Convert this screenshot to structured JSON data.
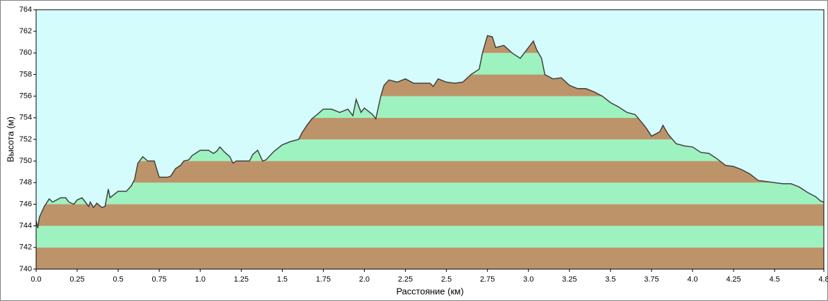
{
  "chart_data": {
    "type": "area",
    "x_label": "Расстояние  (км)",
    "y_label": "Высота (м)",
    "background": "#d4fcfc",
    "line_color": "#404040",
    "band_colors": [
      "#bd9469",
      "#9ef2bf"
    ],
    "xlim": [
      0,
      4.8
    ],
    "ylim": [
      740,
      764
    ],
    "xticks": [
      {
        "value": 0,
        "label": "0.0"
      },
      0.25,
      0.5,
      0.75,
      {
        "value": 1,
        "label": "1.0"
      },
      1.25,
      1.5,
      1.75,
      {
        "value": 2,
        "label": "2.0"
      },
      2.25,
      2.5,
      2.75,
      {
        "value": 3,
        "label": "3.0"
      },
      3.25,
      3.5,
      3.75,
      {
        "value": 4,
        "label": "4.0"
      },
      4.25,
      4.5,
      4.8
    ],
    "yticks": [
      740,
      742,
      744,
      746,
      748,
      750,
      752,
      754,
      756,
      758,
      760,
      762,
      764
    ],
    "x": [
      0,
      0.01,
      0.02,
      0.05,
      0.08,
      0.1,
      0.15,
      0.18,
      0.2,
      0.23,
      0.25,
      0.28,
      0.3,
      0.32,
      0.33,
      0.35,
      0.37,
      0.4,
      0.42,
      0.44,
      0.45,
      0.5,
      0.55,
      0.58,
      0.6,
      0.62,
      0.65,
      0.68,
      0.72,
      0.75,
      0.8,
      0.82,
      0.85,
      0.88,
      0.9,
      0.93,
      0.95,
      1.0,
      1.05,
      1.08,
      1.1,
      1.12,
      1.15,
      1.18,
      1.2,
      1.22,
      1.25,
      1.3,
      1.32,
      1.35,
      1.38,
      1.4,
      1.45,
      1.5,
      1.55,
      1.6,
      1.62,
      1.65,
      1.68,
      1.72,
      1.75,
      1.8,
      1.85,
      1.9,
      1.93,
      1.95,
      1.98,
      2.0,
      2.05,
      2.07,
      2.1,
      2.12,
      2.15,
      2.2,
      2.25,
      2.3,
      2.35,
      2.4,
      2.42,
      2.45,
      2.5,
      2.55,
      2.6,
      2.65,
      2.7,
      2.72,
      2.75,
      2.78,
      2.8,
      2.85,
      2.9,
      2.95,
      3.0,
      3.03,
      3.05,
      3.08,
      3.1,
      3.15,
      3.2,
      3.25,
      3.3,
      3.35,
      3.4,
      3.45,
      3.5,
      3.55,
      3.6,
      3.65,
      3.7,
      3.72,
      3.75,
      3.8,
      3.82,
      3.85,
      3.9,
      3.95,
      4.0,
      4.05,
      4.1,
      4.15,
      4.2,
      4.25,
      4.3,
      4.35,
      4.4,
      4.45,
      4.5,
      4.55,
      4.6,
      4.65,
      4.7,
      4.75,
      4.78,
      4.8
    ],
    "y": [
      744.5,
      743.8,
      744.8,
      745.8,
      746.5,
      746.2,
      746.6,
      746.6,
      746.2,
      746,
      746.4,
      746.6,
      746.2,
      745.8,
      746.2,
      745.7,
      746.1,
      745.7,
      745.8,
      747.4,
      746.6,
      747.2,
      747.2,
      747.7,
      748.3,
      749.8,
      750.4,
      750,
      750,
      748.5,
      748.5,
      748.6,
      749.3,
      749.6,
      750,
      750.1,
      750.5,
      751,
      751,
      750.7,
      750.9,
      751.3,
      750.8,
      750.4,
      749.8,
      750,
      750,
      750,
      750.6,
      751,
      750,
      750.1,
      750.9,
      751.5,
      751.8,
      752,
      752.6,
      753.3,
      753.9,
      754.4,
      754.8,
      754.8,
      754.5,
      754.8,
      754.2,
      755.7,
      754.5,
      754.9,
      754.3,
      753.9,
      756,
      757,
      757.5,
      757.3,
      757.6,
      757.2,
      757.2,
      757.2,
      756.9,
      757.6,
      757.3,
      757.2,
      757.3,
      758,
      758.5,
      760,
      761.6,
      761.5,
      760.5,
      760.7,
      760,
      759.5,
      760.5,
      761.1,
      760.3,
      759.5,
      758,
      757.6,
      757.7,
      757,
      756.7,
      756.7,
      756.4,
      756,
      755.4,
      755,
      754.5,
      754.3,
      753.4,
      753,
      752.3,
      752.7,
      753.3,
      752.5,
      751.6,
      751.4,
      751.3,
      750.8,
      750.7,
      750.2,
      749.6,
      749.5,
      749.2,
      748.8,
      748.2,
      748.1,
      748,
      747.9,
      747.9,
      747.6,
      747.1,
      746.7,
      746.3,
      746.2
    ]
  }
}
